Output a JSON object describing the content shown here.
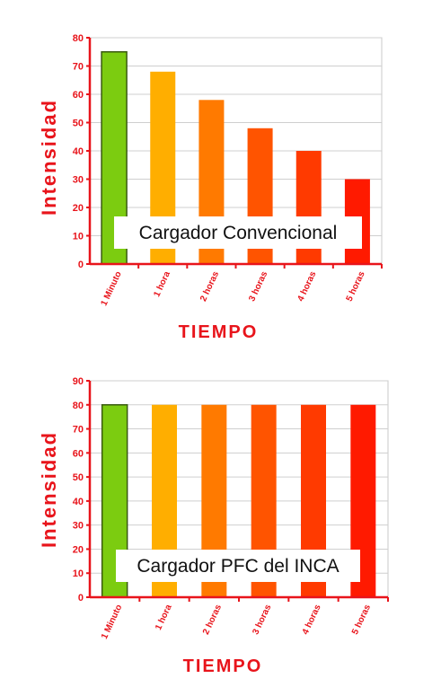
{
  "chart_data": [
    {
      "type": "bar",
      "categories": [
        "1 Minuto",
        "1 hora",
        "2 horas",
        "3 horas",
        "4 horas",
        "5 horas"
      ],
      "values": [
        75,
        68,
        58,
        48,
        40,
        30
      ],
      "colors": [
        "#7ccc10",
        "#ffae00",
        "#ff7a00",
        "#ff5400",
        "#ff3a00",
        "#ff1a00"
      ],
      "ylabel": "Intensidad",
      "xlabel": "TIEMPO",
      "ylim": [
        0,
        80
      ],
      "yticks": [
        "0",
        "10",
        "20",
        "30",
        "40",
        "50",
        "60",
        "70",
        "80"
      ],
      "annotation": "Cargador Convencional",
      "axis_color": "#e8141b",
      "grid": true
    },
    {
      "type": "bar",
      "categories": [
        "1 Minuto",
        "1 hora",
        "2 horas",
        "3 horas",
        "4 horas",
        "5 horas"
      ],
      "values": [
        80,
        80,
        80,
        80,
        80,
        80
      ],
      "colors": [
        "#7ccc10",
        "#ffae00",
        "#ff7a00",
        "#ff5400",
        "#ff3a00",
        "#ff1a00"
      ],
      "ylabel": "Intensidad",
      "xlabel": "TIEMPO",
      "ylim": [
        0,
        90
      ],
      "yticks": [
        "0",
        "10",
        "20",
        "30",
        "40",
        "50",
        "60",
        "70",
        "80",
        "90"
      ],
      "annotation": "Cargador PFC del INCA",
      "axis_color": "#e8141b",
      "grid": true
    }
  ]
}
